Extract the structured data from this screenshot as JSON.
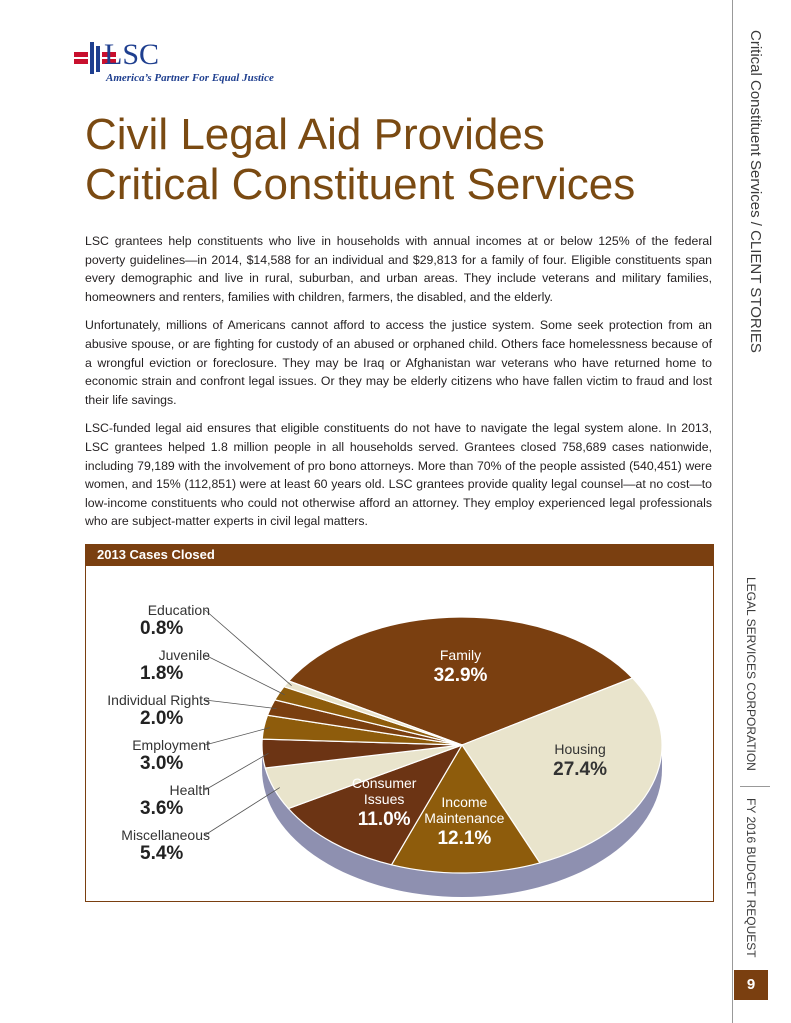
{
  "logo": {
    "mark": "LSC",
    "tagline": "America’s Partner For Equal Justice"
  },
  "title": [
    "Civil Legal Aid Provides",
    "Critical Constituent Services"
  ],
  "paragraphs": [
    "LSC grantees help constituents who live in households with annual incomes at or below 125% of the federal poverty guidelines—in 2014, $14,588 for an individual and $29,813 for a family of four. Eligible constituents span every demographic and live in rural, suburban, and urban areas. They include veterans and military families, homeowners and renters, families with children, farmers, the disabled, and the elderly.",
    "Unfortunately, millions of Americans cannot afford to access the justice system. Some seek protection from an abusive spouse, or are fighting for custody of an abused or orphaned child. Others face homelessness because of a wrongful eviction or foreclosure. They may be Iraq or Afghanistan war veterans who have returned home to economic strain and confront legal issues. Or they may be elderly citizens who have fallen victim to fraud and lost their life savings.",
    "LSC-funded legal aid ensures that eligible constituents do not have to navigate the legal system alone. In 2013, LSC grantees helped 1.8 million people in all households served. Grantees closed 758,689 cases nationwide, including 79,189 with the involvement of pro bono attorneys. More than 70% of the people assisted (540,451) were women, and 15% (112,851) were at least 60 years old. LSC grantees provide quality legal counsel—at no cost—to low-income constituents who could not otherwise afford an attorney. They employ experienced legal professionals who are subject-matter experts in civil legal matters."
  ],
  "chart_data": {
    "type": "pie",
    "title": "2013 Cases Closed",
    "categories": [
      "Family",
      "Housing",
      "Income Maintenance",
      "Consumer Issues",
      "Miscellaneous",
      "Health",
      "Employment",
      "Individual Rights",
      "Juvenile",
      "Education"
    ],
    "values": [
      32.9,
      27.4,
      12.1,
      11.0,
      5.4,
      3.6,
      3.0,
      2.0,
      1.8,
      0.8
    ],
    "value_labels": [
      "32.9%",
      "27.4%",
      "12.1%",
      "11.0%",
      "5.4%",
      "3.6%",
      "3.0%",
      "2.0%",
      "1.8%",
      "0.8%"
    ],
    "colors": [
      "#7a3f10",
      "#e9e4cc",
      "#8e5c0c",
      "#6c3414",
      "#e9e4cc",
      "#6c3414",
      "#8e5c0c",
      "#7a3f10",
      "#8e5c0c",
      "#e9e4cc"
    ]
  },
  "sidebar": {
    "section": "Critical Constituent Services / CLIENT STORIES",
    "org": "LEGAL SERVICES CORPORATION",
    "report": "FY 2016 BUDGET REQUEST",
    "page_number": "9"
  }
}
